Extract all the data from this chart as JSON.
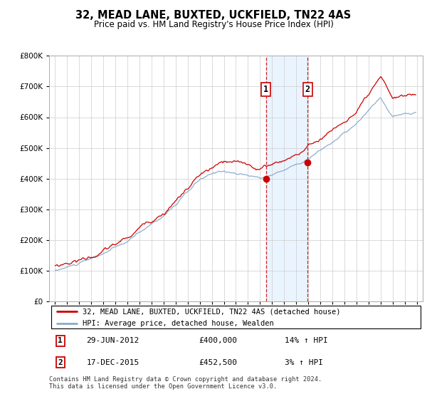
{
  "title": "32, MEAD LANE, BUXTED, UCKFIELD, TN22 4AS",
  "subtitle": "Price paid vs. HM Land Registry's House Price Index (HPI)",
  "ylim": [
    0,
    800000
  ],
  "xlim_start": 1994.5,
  "xlim_end": 2025.5,
  "legend_line1": "32, MEAD LANE, BUXTED, UCKFIELD, TN22 4AS (detached house)",
  "legend_line2": "HPI: Average price, detached house, Wealden",
  "transaction1_label": "1",
  "transaction1_date": "29-JUN-2012",
  "transaction1_price": "£400,000",
  "transaction1_hpi": "14% ↑ HPI",
  "transaction1_year": 2012.5,
  "transaction1_price_val": 400000,
  "transaction2_label": "2",
  "transaction2_date": "17-DEC-2015",
  "transaction2_price": "£452,500",
  "transaction2_hpi": "3% ↑ HPI",
  "transaction2_year": 2015.96,
  "transaction2_price_val": 452500,
  "footer": "Contains HM Land Registry data © Crown copyright and database right 2024.\nThis data is licensed under the Open Government Licence v3.0.",
  "line_color_red": "#cc0000",
  "line_color_blue": "#88aacc",
  "shade_color": "#ddeeff",
  "box_color": "#cc0000",
  "background_color": "#ffffff",
  "hpi_seed": 10,
  "prop_seed": 20
}
